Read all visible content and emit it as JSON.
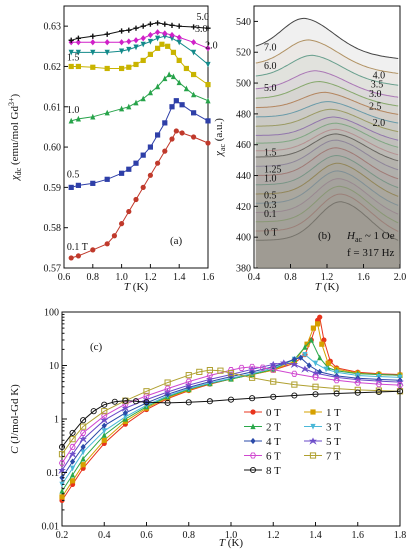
{
  "figure": {
    "panel_a_label": "(a)",
    "panel_b_label": "(b)",
    "panel_c_label": "(c)",
    "b_annotation_1": "H",
    "b_annotation_1_sub": "ac",
    "b_annotation_1_rest": " ~ 1 Oe",
    "b_annotation_2": "f = 317 Hz"
  },
  "chart_data": [
    {
      "id": "a",
      "type": "line",
      "xlabel": "T (K)",
      "ylabel": "χdc (emu/mol Gd3+)",
      "xlim": [
        0.6,
        1.6
      ],
      "ylim": [
        0.57,
        0.635
      ],
      "xticks": [
        "0.6",
        "0.8",
        "1.0",
        "1.2",
        "1.4",
        "1.6"
      ],
      "yticks": [
        "0.57",
        "0.58",
        "0.59",
        "0.60",
        "0.61",
        "0.62",
        "0.63"
      ],
      "series": [
        {
          "name": "0.1 T",
          "color": "#c0392b",
          "marker": "circle",
          "x": [
            0.65,
            0.7,
            0.8,
            0.9,
            0.95,
            1.0,
            1.05,
            1.1,
            1.15,
            1.2,
            1.25,
            1.3,
            1.35,
            1.38,
            1.42,
            1.5,
            1.6
          ],
          "y": [
            0.5725,
            0.573,
            0.5745,
            0.576,
            0.578,
            0.581,
            0.584,
            0.587,
            0.59,
            0.593,
            0.596,
            0.599,
            0.602,
            0.604,
            0.6035,
            0.6025,
            0.601
          ]
        },
        {
          "name": "0.5",
          "color": "#2e3fa8",
          "marker": "square",
          "x": [
            0.65,
            0.7,
            0.8,
            0.9,
            1.0,
            1.05,
            1.1,
            1.15,
            1.2,
            1.25,
            1.3,
            1.35,
            1.38,
            1.42,
            1.5,
            1.6
          ],
          "y": [
            0.59,
            0.5905,
            0.591,
            0.592,
            0.5935,
            0.5945,
            0.596,
            0.598,
            0.6,
            0.603,
            0.606,
            0.61,
            0.6115,
            0.6105,
            0.6085,
            0.6065
          ]
        },
        {
          "name": "1.0",
          "color": "#27a34a",
          "marker": "triangle",
          "x": [
            0.65,
            0.7,
            0.8,
            0.9,
            1.0,
            1.05,
            1.1,
            1.15,
            1.2,
            1.25,
            1.3,
            1.33,
            1.36,
            1.4,
            1.45,
            1.5,
            1.6
          ],
          "y": [
            0.6065,
            0.607,
            0.6075,
            0.6085,
            0.6095,
            0.61,
            0.611,
            0.612,
            0.6135,
            0.615,
            0.617,
            0.618,
            0.6175,
            0.616,
            0.6145,
            0.613,
            0.6115
          ]
        },
        {
          "name": "1.5",
          "color": "#c9b400",
          "marker": "square",
          "x": [
            0.65,
            0.7,
            0.8,
            0.9,
            1.0,
            1.05,
            1.1,
            1.15,
            1.2,
            1.25,
            1.28,
            1.32,
            1.36,
            1.4,
            1.45,
            1.5,
            1.6
          ],
          "y": [
            0.62,
            0.62,
            0.6198,
            0.6195,
            0.6195,
            0.6198,
            0.6205,
            0.6215,
            0.623,
            0.6245,
            0.6255,
            0.625,
            0.6235,
            0.6215,
            0.6195,
            0.618,
            0.6155
          ]
        },
        {
          "name": "2.0",
          "color": "#138a8a",
          "marker": "triangle-down",
          "x": [
            0.65,
            0.7,
            0.8,
            0.9,
            1.0,
            1.05,
            1.1,
            1.15,
            1.2,
            1.25,
            1.3,
            1.35,
            1.4,
            1.5,
            1.6
          ],
          "y": [
            0.6235,
            0.6235,
            0.6235,
            0.6235,
            0.6238,
            0.6242,
            0.6248,
            0.6255,
            0.6262,
            0.627,
            0.6275,
            0.627,
            0.626,
            0.6235,
            0.6205
          ]
        },
        {
          "name": "3.0",
          "color": "#d020c8",
          "marker": "diamond",
          "x": [
            0.65,
            0.7,
            0.8,
            0.9,
            1.0,
            1.05,
            1.1,
            1.15,
            1.2,
            1.25,
            1.3,
            1.35,
            1.4,
            1.5,
            1.6
          ],
          "y": [
            0.626,
            0.626,
            0.626,
            0.626,
            0.626,
            0.6262,
            0.6265,
            0.627,
            0.6278,
            0.6285,
            0.6282,
            0.6278,
            0.6272,
            0.626,
            0.6245
          ]
        },
        {
          "name": "5.0",
          "color": "#111111",
          "marker": "plus",
          "x": [
            0.65,
            0.7,
            0.8,
            0.9,
            1.0,
            1.05,
            1.1,
            1.15,
            1.2,
            1.25,
            1.3,
            1.35,
            1.4,
            1.5,
            1.6
          ],
          "y": [
            0.6265,
            0.627,
            0.6275,
            0.628,
            0.6288,
            0.629,
            0.6295,
            0.63,
            0.6305,
            0.6308,
            0.6305,
            0.6302,
            0.63,
            0.6298,
            0.6295
          ]
        }
      ]
    },
    {
      "id": "b",
      "type": "line",
      "xlabel": "T (K)",
      "ylabel": "χac (a.u.)",
      "xlim": [
        0.4,
        2.0
      ],
      "ylim": [
        380,
        550
      ],
      "xticks": [
        "0.4",
        "0.8",
        "1.2",
        "1.6",
        "2.0"
      ],
      "yticks": [
        "380",
        "400",
        "420",
        "440",
        "460",
        "480",
        "500",
        "520",
        "540"
      ],
      "field_labels_left": [
        "7.0",
        "6.0",
        "5.0",
        "1.5",
        "1.25",
        "1.0",
        "0.5",
        "0.3",
        "0.1",
        "0 T"
      ],
      "field_labels_right": [
        "4.0",
        "3.5",
        "3.0",
        "2.5",
        "2.0"
      ],
      "series_offsets": [
        398,
        404,
        410,
        416,
        422,
        428,
        434,
        440,
        446,
        452,
        456,
        461,
        466,
        472,
        478,
        484,
        490,
        496,
        504,
        512,
        522
      ],
      "series_peaks": [
        25,
        24,
        23,
        22,
        21,
        20,
        19,
        18,
        17,
        15,
        14,
        13,
        12,
        11,
        10,
        10,
        11,
        12,
        14,
        16,
        20
      ],
      "series_peak_T": [
        1.35,
        1.35,
        1.34,
        1.33,
        1.32,
        1.32,
        1.31,
        1.3,
        1.3,
        1.3,
        1.3,
        1.3,
        1.28,
        1.25,
        1.22,
        1.18,
        1.12,
        1.08,
        1.04,
        1.0,
        0.95
      ],
      "series_colors": [
        "#222",
        "#d66",
        "#8c5",
        "#c9c",
        "#6ad",
        "#a80",
        "#5b9",
        "#c66",
        "#98c",
        "#333",
        "#e9a",
        "#7c8",
        "#96d",
        "#aa5",
        "#5ac",
        "#c85",
        "#8b6",
        "#b7c",
        "#6a9",
        "#b96",
        "#444"
      ]
    },
    {
      "id": "c",
      "type": "line",
      "xlabel": "T (K)",
      "ylabel": "C (J/mol-Gd K)",
      "log_y": true,
      "xlim": [
        0.2,
        1.8
      ],
      "ylim": [
        0.01,
        100
      ],
      "xticks": [
        "0.2",
        "0.4",
        "0.6",
        "0.8",
        "1.0",
        "1.2",
        "1.4",
        "1.6",
        "1.8"
      ],
      "yticks": [
        "0.01",
        "0.1",
        "1",
        "10",
        "100"
      ],
      "legend_position": "lower-right",
      "series": [
        {
          "name": "0 T",
          "color": "#e8341c",
          "marker": "circle",
          "x": [
            0.2,
            0.25,
            0.3,
            0.4,
            0.5,
            0.6,
            0.7,
            0.8,
            0.9,
            1.0,
            1.1,
            1.2,
            1.3,
            1.35,
            1.38,
            1.41,
            1.42,
            1.44,
            1.47,
            1.5,
            1.6,
            1.7,
            1.8
          ],
          "y": [
            0.03,
            0.06,
            0.12,
            0.35,
            0.8,
            1.5,
            2.4,
            3.4,
            4.5,
            5.6,
            6.8,
            8.2,
            11,
            16,
            30,
            70,
            80,
            30,
            12,
            9,
            7.5,
            7,
            6.8
          ]
        },
        {
          "name": "1 T",
          "color": "#d6a000",
          "marker": "square",
          "x": [
            0.2,
            0.25,
            0.3,
            0.4,
            0.5,
            0.6,
            0.7,
            0.8,
            0.9,
            1.0,
            1.1,
            1.2,
            1.3,
            1.36,
            1.39,
            1.41,
            1.43,
            1.46,
            1.5,
            1.6,
            1.7,
            1.8
          ],
          "y": [
            0.035,
            0.07,
            0.14,
            0.4,
            0.9,
            1.6,
            2.5,
            3.5,
            4.6,
            5.6,
            6.8,
            8.2,
            12,
            25,
            50,
            60,
            25,
            11,
            8.5,
            7.2,
            6.8,
            6.6
          ]
        },
        {
          "name": "2 T",
          "color": "#2aa84a",
          "marker": "triangle",
          "x": [
            0.2,
            0.25,
            0.3,
            0.4,
            0.5,
            0.6,
            0.7,
            0.8,
            0.9,
            1.0,
            1.1,
            1.2,
            1.3,
            1.35,
            1.38,
            1.42,
            1.46,
            1.5,
            1.6,
            1.7,
            1.8
          ],
          "y": [
            0.045,
            0.09,
            0.18,
            0.5,
            1.0,
            1.7,
            2.6,
            3.6,
            4.6,
            5.6,
            6.8,
            8.5,
            13,
            22,
            30,
            14,
            9,
            8,
            7,
            6.8,
            6.6
          ]
        },
        {
          "name": "3 T",
          "color": "#4ab8d8",
          "marker": "triangle-down",
          "x": [
            0.2,
            0.25,
            0.3,
            0.4,
            0.5,
            0.6,
            0.7,
            0.8,
            0.9,
            1.0,
            1.1,
            1.2,
            1.3,
            1.35,
            1.4,
            1.45,
            1.5,
            1.6,
            1.7,
            1.8
          ],
          "y": [
            0.06,
            0.12,
            0.24,
            0.6,
            1.1,
            1.8,
            2.7,
            3.7,
            4.7,
            5.8,
            7,
            9,
            13,
            16,
            11,
            8.5,
            7.5,
            6.5,
            6.2,
            6
          ]
        },
        {
          "name": "4 T",
          "color": "#2a4aa8",
          "marker": "diamond",
          "x": [
            0.2,
            0.25,
            0.3,
            0.4,
            0.5,
            0.6,
            0.7,
            0.8,
            0.9,
            1.0,
            1.1,
            1.2,
            1.3,
            1.33,
            1.37,
            1.42,
            1.5,
            1.6,
            1.7,
            1.8
          ],
          "y": [
            0.08,
            0.16,
            0.3,
            0.75,
            1.3,
            2.0,
            2.9,
            3.9,
            5.0,
            6.2,
            7.6,
            9.5,
            13,
            14,
            10,
            7.6,
            6.4,
            5.8,
            5.5,
            5.3
          ]
        },
        {
          "name": "5 T",
          "color": "#6a4ac8",
          "marker": "star",
          "x": [
            0.2,
            0.25,
            0.3,
            0.4,
            0.5,
            0.6,
            0.7,
            0.8,
            0.9,
            1.0,
            1.1,
            1.2,
            1.25,
            1.3,
            1.35,
            1.4,
            1.5,
            1.6,
            1.7,
            1.8
          ],
          "y": [
            0.11,
            0.22,
            0.42,
            0.95,
            1.6,
            2.3,
            3.2,
            4.3,
            5.5,
            6.8,
            8.5,
            10.5,
            11.2,
            10.5,
            8.6,
            7.2,
            6,
            5.4,
            5.1,
            4.9
          ]
        },
        {
          "name": "6 T",
          "color": "#d048d0",
          "marker": "hexagon",
          "x": [
            0.2,
            0.25,
            0.3,
            0.4,
            0.5,
            0.6,
            0.7,
            0.8,
            0.9,
            1.0,
            1.05,
            1.1,
            1.15,
            1.2,
            1.3,
            1.4,
            1.5,
            1.6,
            1.7,
            1.8
          ],
          "y": [
            0.15,
            0.3,
            0.55,
            1.15,
            1.9,
            2.7,
            3.7,
            5.0,
            6.5,
            8.2,
            9,
            9.4,
            9.1,
            8.4,
            7,
            6,
            5.3,
            4.8,
            4.5,
            4.3
          ]
        },
        {
          "name": "7 T",
          "color": "#b0a030",
          "marker": "square-open",
          "x": [
            0.2,
            0.25,
            0.3,
            0.4,
            0.5,
            0.6,
            0.7,
            0.8,
            0.85,
            0.9,
            0.95,
            1.0,
            1.1,
            1.2,
            1.3,
            1.4,
            1.5,
            1.6,
            1.7,
            1.8
          ],
          "y": [
            0.22,
            0.42,
            0.72,
            1.4,
            2.2,
            3.3,
            4.8,
            6.6,
            7.6,
            8.2,
            8.0,
            7.2,
            5.9,
            5,
            4.4,
            4,
            3.7,
            3.5,
            3.4,
            3.3
          ]
        },
        {
          "name": "8 T",
          "color": "#111111",
          "marker": "circle-cross",
          "x": [
            0.2,
            0.25,
            0.3,
            0.35,
            0.4,
            0.45,
            0.5,
            0.55,
            0.6,
            0.7,
            0.8,
            0.9,
            1.0,
            1.1,
            1.2,
            1.3,
            1.4,
            1.5,
            1.6,
            1.7,
            1.8
          ],
          "y": [
            0.3,
            0.55,
            0.95,
            1.4,
            1.85,
            2.1,
            2.2,
            2.15,
            2.05,
            2.0,
            2.05,
            2.15,
            2.3,
            2.45,
            2.6,
            2.75,
            2.9,
            3.0,
            3.1,
            3.2,
            3.3
          ]
        }
      ]
    }
  ]
}
